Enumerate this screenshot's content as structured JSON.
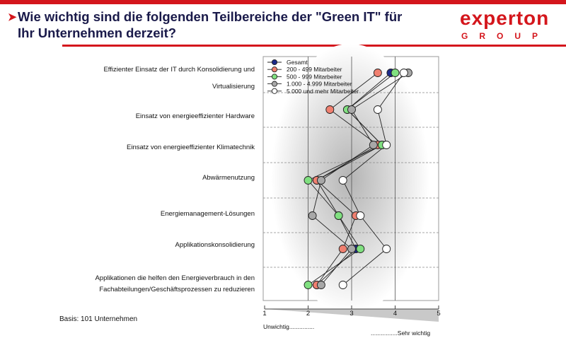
{
  "header": {
    "title_line1": "Wie wichtig sind die folgenden Teilbereiche der \"Green IT\" für",
    "title_line2": "Ihr Unternehmen derzeit?",
    "logo_word": "experton",
    "logo_group": "GROUP"
  },
  "footer": {
    "basis": "Basis: 101 Unternehmen",
    "left_scale_label": "Unwichtig...............",
    "right_scale_label": "................Sehr wichtig"
  },
  "colors": {
    "brand": "#d4161c",
    "title": "#1a1a4a"
  },
  "chart_data": {
    "type": "line",
    "orientation": "horizontal",
    "xlim": [
      1,
      5
    ],
    "x_ticks": [
      "1",
      "2",
      "3",
      "4",
      "5"
    ],
    "grid": "horizontal dashed separators",
    "legend_position": "top-left",
    "categories": [
      [
        "Effizienter Einsatz der IT durch Konsolidierung und",
        "Virtualisierung"
      ],
      [
        "Einsatz von energieeffizienter Hardware"
      ],
      [
        "Einsatz von energieeffizienter Klimatechnik"
      ],
      [
        "Abwärmenutzung"
      ],
      [
        "Energiemanagement-Lösungen"
      ],
      [
        "Applikationskonsolidierung"
      ],
      [
        "Applikationen die helfen den Energieverbrauch in den",
        "Fachabteilungen/Geschäftsprozessen zu reduzieren"
      ]
    ],
    "series": [
      {
        "name": "Gesamt",
        "color": "#1c2a8a",
        "values": [
          3.9,
          2.9,
          3.7,
          2.2,
          2.7,
          3.1,
          2.2
        ]
      },
      {
        "name": "200 - 499 Mitarbeiter",
        "color": "#f08070",
        "values": [
          3.6,
          2.5,
          3.6,
          2.2,
          3.1,
          2.8,
          2.2
        ]
      },
      {
        "name": "500 - 999 Mitarbeiter",
        "color": "#80e080",
        "values": [
          4.0,
          2.9,
          3.7,
          2.0,
          2.7,
          3.2,
          2.0
        ]
      },
      {
        "name": "1.000 - 4.999 Mitarbeiter",
        "color": "#a8a8a8",
        "values": [
          4.3,
          3.0,
          3.5,
          2.3,
          2.1,
          3.0,
          2.3
        ]
      },
      {
        "name": "5.000 und mehr Mitarbeiter",
        "color": "#ffffff",
        "values": [
          4.2,
          3.6,
          3.8,
          2.8,
          3.2,
          3.8,
          2.8
        ]
      }
    ]
  }
}
